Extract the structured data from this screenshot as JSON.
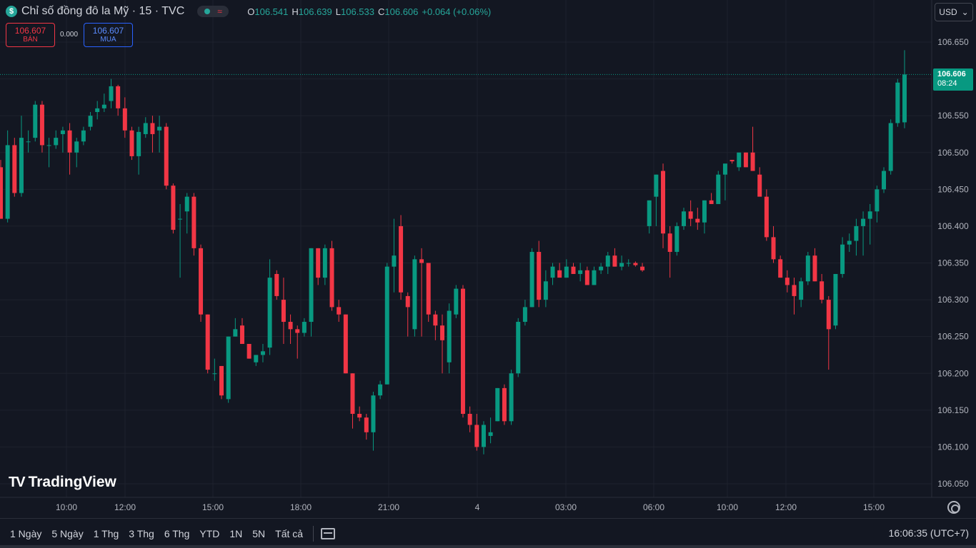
{
  "header": {
    "symbol_icon": "$",
    "title": "Chỉ số đồng đô la Mỹ · 15 · TVC",
    "status_icon": "market-open-dot-icon",
    "ohlc": [
      {
        "label": "O",
        "value": "106.541"
      },
      {
        "label": "H",
        "value": "106.639"
      },
      {
        "label": "L",
        "value": "106.533"
      },
      {
        "label": "C",
        "value": "106.606"
      },
      {
        "label": "",
        "value": "+0.064 (+0.06%)"
      }
    ]
  },
  "trade": {
    "sell_price": "106.607",
    "sell_label": "BÁN",
    "spread": "0.000",
    "buy_price": "106.607",
    "buy_label": "MUA"
  },
  "currency": {
    "label": "USD",
    "icon": "chevron-down-icon"
  },
  "watermark": {
    "logo": "TV",
    "text": "TradingView"
  },
  "last_price": {
    "price": "106.606",
    "countdown": "08:24"
  },
  "bottom_bar": {
    "ranges": [
      "1 Ngày",
      "5 Ngày",
      "1 Thg",
      "3 Thg",
      "6 Thg",
      "YTD",
      "1N",
      "5N",
      "Tất cả"
    ],
    "clock": "16:06:35 (UTC+7)"
  },
  "colors": {
    "background": "#131722",
    "up": "#089981",
    "down": "#f23645",
    "grid": "#1e222d"
  },
  "chart_data": {
    "type": "candlestick",
    "title": "Chỉ số đồng đô la Mỹ · 15 · TVC",
    "y_ticks": [
      "106.650",
      "106.600",
      "106.550",
      "106.500",
      "106.450",
      "106.400",
      "106.350",
      "106.300",
      "106.250",
      "106.200",
      "106.150",
      "106.100",
      "106.050"
    ],
    "x_ticks": [
      "10:00",
      "12:00",
      "15:00",
      "18:00",
      "21:00",
      "4",
      "03:00",
      "06:00",
      "10:00",
      "12:00",
      "15:00"
    ],
    "ylim": [
      106.03,
      106.685
    ],
    "grid": true,
    "series": [
      {
        "candles": [
          [
            106.48,
            106.49,
            106.41,
            106.41
          ],
          [
            106.41,
            106.53,
            106.405,
            106.51
          ],
          [
            106.51,
            106.52,
            106.44,
            106.445
          ],
          [
            106.445,
            106.55,
            106.44,
            106.52
          ],
          [
            106.515,
            106.53,
            106.5,
            106.515
          ],
          [
            106.52,
            106.57,
            106.515,
            106.565
          ],
          [
            106.565,
            106.57,
            106.5,
            106.51
          ],
          [
            106.51,
            106.52,
            106.48,
            106.51
          ],
          [
            106.51,
            106.53,
            106.505,
            106.52
          ],
          [
            106.525,
            106.535,
            106.5,
            106.53
          ],
          [
            106.53,
            106.54,
            106.47,
            106.5
          ],
          [
            106.5,
            106.52,
            106.48,
            106.515
          ],
          [
            106.515,
            106.535,
            106.51,
            106.53
          ],
          [
            106.535,
            106.555,
            106.53,
            106.55
          ],
          [
            106.555,
            106.57,
            106.545,
            106.56
          ],
          [
            106.56,
            106.58,
            106.555,
            106.565
          ],
          [
            106.57,
            106.6,
            106.56,
            106.59
          ],
          [
            106.59,
            106.592,
            106.55,
            106.56
          ],
          [
            106.56,
            106.575,
            106.52,
            106.53
          ],
          [
            106.53,
            106.535,
            106.49,
            106.495
          ],
          [
            106.495,
            106.535,
            106.47,
            106.528
          ],
          [
            106.525,
            106.548,
            106.52,
            106.54
          ],
          [
            106.54,
            106.55,
            106.5,
            106.525
          ],
          [
            106.53,
            106.55,
            106.5,
            106.535
          ],
          [
            106.535,
            106.54,
            106.45,
            106.455
          ],
          [
            106.455,
            106.458,
            106.39,
            106.395
          ],
          [
            106.41,
            106.43,
            106.33,
            106.41
          ],
          [
            106.42,
            106.445,
            106.39,
            106.44
          ],
          [
            106.44,
            106.445,
            106.36,
            106.37
          ],
          [
            106.37,
            106.375,
            106.27,
            106.28
          ],
          [
            106.28,
            106.28,
            106.2,
            106.205
          ],
          [
            106.2,
            106.22,
            106.19,
            106.2
          ],
          [
            106.21,
            106.21,
            106.165,
            106.17
          ],
          [
            106.165,
            106.25,
            106.16,
            106.25
          ],
          [
            106.25,
            106.275,
            106.25,
            106.26
          ],
          [
            106.265,
            106.275,
            106.24,
            106.24
          ],
          [
            106.24,
            106.24,
            106.22,
            106.22
          ],
          [
            106.215,
            106.225,
            106.21,
            106.225
          ],
          [
            106.225,
            106.24,
            106.215,
            106.23
          ],
          [
            106.235,
            106.355,
            106.225,
            106.33
          ],
          [
            106.335,
            106.34,
            106.3,
            106.305
          ],
          [
            106.3,
            106.33,
            106.24,
            106.27
          ],
          [
            106.27,
            106.28,
            106.24,
            106.26
          ],
          [
            106.26,
            106.265,
            106.22,
            106.255
          ],
          [
            106.255,
            106.275,
            106.25,
            106.27
          ],
          [
            106.27,
            106.37,
            106.25,
            106.37
          ],
          [
            106.37,
            106.37,
            106.32,
            106.33
          ],
          [
            106.33,
            106.375,
            106.32,
            106.37
          ],
          [
            106.37,
            106.38,
            106.285,
            106.29
          ],
          [
            106.29,
            106.3,
            106.27,
            106.28
          ],
          [
            106.28,
            106.28,
            106.2,
            106.2
          ],
          [
            106.2,
            106.2,
            106.125,
            106.145
          ],
          [
            106.145,
            106.155,
            106.135,
            106.14
          ],
          [
            106.14,
            106.145,
            106.11,
            106.12
          ],
          [
            106.12,
            106.175,
            106.095,
            106.17
          ],
          [
            106.17,
            106.19,
            106.165,
            106.185
          ],
          [
            106.185,
            106.35,
            106.185,
            106.345
          ],
          [
            106.345,
            106.41,
            106.31,
            106.36
          ],
          [
            106.4,
            106.415,
            106.3,
            106.31
          ],
          [
            106.305,
            106.31,
            106.25,
            106.29
          ],
          [
            106.26,
            106.36,
            106.25,
            106.355
          ],
          [
            106.355,
            106.37,
            106.25,
            106.35
          ],
          [
            106.35,
            106.35,
            106.27,
            106.28
          ],
          [
            106.28,
            106.285,
            106.245,
            106.265
          ],
          [
            106.265,
            106.28,
            106.2,
            106.245
          ],
          [
            106.215,
            106.295,
            106.2,
            106.285
          ],
          [
            106.28,
            106.32,
            106.275,
            106.315
          ],
          [
            106.315,
            106.32,
            106.14,
            106.145
          ],
          [
            106.145,
            106.155,
            106.12,
            106.13
          ],
          [
            106.13,
            106.145,
            106.095,
            106.1
          ],
          [
            106.1,
            106.135,
            106.09,
            106.13
          ],
          [
            106.115,
            106.14,
            106.105,
            106.12
          ],
          [
            106.135,
            106.18,
            106.135,
            106.18
          ],
          [
            106.18,
            106.185,
            106.13,
            106.135
          ],
          [
            106.135,
            106.205,
            106.13,
            106.2
          ],
          [
            106.2,
            106.275,
            106.195,
            106.27
          ],
          [
            106.27,
            106.3,
            106.265,
            106.29
          ],
          [
            106.29,
            106.37,
            106.29,
            106.365
          ],
          [
            106.365,
            106.38,
            106.29,
            106.3
          ],
          [
            106.3,
            106.34,
            106.29,
            106.325
          ],
          [
            106.33,
            106.35,
            106.32,
            106.345
          ],
          [
            106.34,
            106.35,
            106.335,
            106.33
          ],
          [
            106.33,
            106.355,
            106.33,
            106.345
          ],
          [
            106.345,
            106.35,
            106.335,
            106.335
          ],
          [
            106.335,
            106.35,
            106.325,
            106.34
          ],
          [
            106.34,
            106.345,
            106.325,
            106.32
          ],
          [
            106.32,
            106.345,
            106.32,
            106.34
          ],
          [
            106.34,
            106.35,
            106.335,
            106.345
          ],
          [
            106.345,
            106.365,
            106.335,
            106.36
          ],
          [
            106.36,
            106.37,
            106.345,
            106.345
          ],
          [
            106.345,
            106.36,
            106.34,
            106.35
          ],
          [
            106.35,
            106.355,
            106.345,
            106.35
          ],
          [
            106.35,
            106.352,
            106.345,
            106.347
          ],
          [
            106.345,
            106.35,
            106.338,
            106.34
          ],
          [
            106.4,
            106.435,
            106.39,
            106.435
          ],
          [
            106.44,
            106.47,
            106.4,
            106.47
          ],
          [
            106.475,
            106.485,
            106.37,
            106.39
          ],
          [
            106.39,
            106.4,
            106.33,
            106.365
          ],
          [
            106.365,
            106.405,
            106.36,
            106.4
          ],
          [
            106.4,
            106.425,
            106.395,
            106.42
          ],
          [
            106.42,
            106.435,
            106.4,
            106.41
          ],
          [
            106.41,
            106.425,
            106.395,
            106.405
          ],
          [
            106.405,
            106.435,
            106.39,
            106.435
          ],
          [
            106.435,
            106.445,
            106.43,
            106.43
          ],
          [
            106.43,
            106.475,
            106.43,
            106.47
          ],
          [
            106.47,
            106.48,
            106.435,
            106.485
          ],
          [
            106.49,
            106.49,
            106.485,
            106.488
          ],
          [
            106.48,
            106.495,
            106.475,
            106.5
          ],
          [
            106.5,
            106.5,
            106.48,
            106.48
          ],
          [
            106.5,
            106.535,
            106.475,
            106.475
          ],
          [
            106.47,
            106.48,
            106.445,
            106.44
          ],
          [
            106.44,
            106.45,
            106.38,
            106.385
          ],
          [
            106.385,
            106.4,
            106.35,
            106.355
          ],
          [
            106.355,
            106.36,
            106.33,
            106.33
          ],
          [
            106.33,
            106.34,
            106.31,
            106.32
          ],
          [
            106.32,
            106.33,
            106.28,
            106.305
          ],
          [
            106.3,
            106.33,
            106.29,
            106.325
          ],
          [
            106.325,
            106.365,
            106.32,
            106.36
          ],
          [
            106.36,
            106.37,
            106.325,
            106.325
          ],
          [
            106.325,
            106.335,
            106.295,
            106.3
          ],
          [
            106.3,
            106.305,
            106.205,
            106.26
          ],
          [
            106.265,
            106.335,
            106.26,
            106.335
          ],
          [
            106.335,
            106.385,
            106.33,
            106.375
          ],
          [
            106.375,
            106.39,
            106.365,
            106.38
          ],
          [
            106.38,
            106.41,
            106.36,
            106.4
          ],
          [
            106.4,
            106.42,
            106.36,
            106.41
          ],
          [
            106.41,
            106.43,
            106.375,
            106.42
          ],
          [
            106.42,
            106.455,
            106.405,
            106.45
          ],
          [
            106.45,
            106.48,
            106.445,
            106.475
          ],
          [
            106.475,
            106.545,
            106.47,
            106.54
          ],
          [
            106.54,
            106.6,
            106.535,
            106.595
          ],
          [
            106.541,
            106.639,
            106.533,
            106.606
          ]
        ]
      }
    ],
    "last_price": 106.606
  }
}
